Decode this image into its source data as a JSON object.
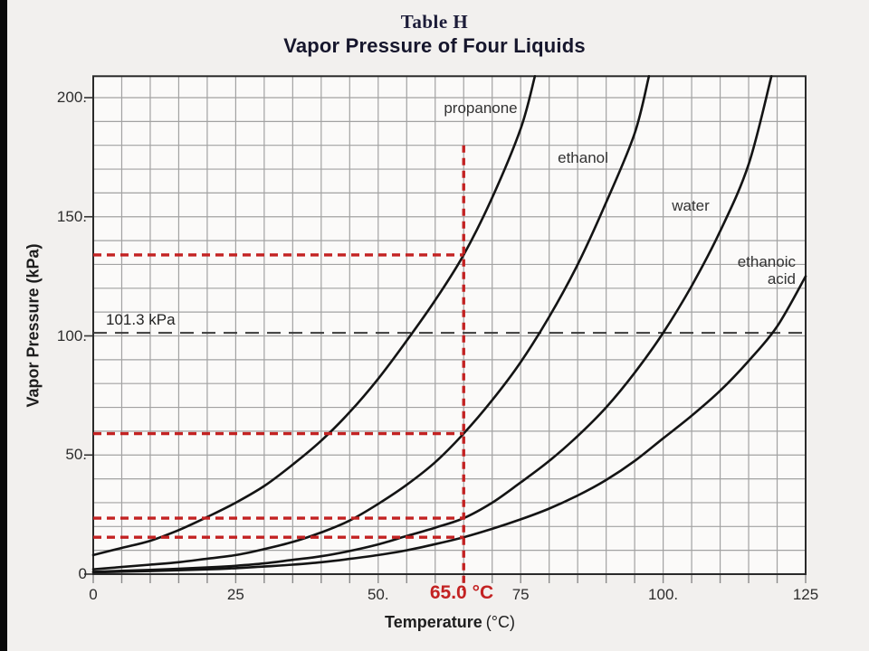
{
  "title": {
    "table": "Table H",
    "subtitle": "Vapor Pressure of Four Liquids"
  },
  "axes": {
    "x": {
      "label": "Temperature",
      "unit": "(°C)",
      "min": 0,
      "max": 125,
      "grid_step": 5,
      "ticks": [
        {
          "value": 0,
          "label": "0"
        },
        {
          "value": 25,
          "label": "25"
        },
        {
          "value": 50,
          "label": "50."
        },
        {
          "value": 75,
          "label": "75"
        },
        {
          "value": 100,
          "label": "100."
        },
        {
          "value": 125,
          "label": "125"
        }
      ]
    },
    "y": {
      "label": "Vapor Pressure (kPa)",
      "min": 0,
      "max": 209,
      "grid_step": 10,
      "ticks": [
        {
          "value": 0,
          "label": "0"
        },
        {
          "value": 50,
          "label": "50."
        },
        {
          "value": 100,
          "label": "100."
        },
        {
          "value": 150,
          "label": "150."
        },
        {
          "value": 200,
          "label": "200."
        }
      ]
    }
  },
  "reference_line": {
    "kpa": 101.3,
    "label": "101.3 kPa"
  },
  "annotation": {
    "temperature_label": "65.0 °C",
    "temperature": 65,
    "vertical_line_top_kpa": 180,
    "horizontal_lines_kpa": [
      134,
      59,
      23.5,
      15.5
    ],
    "readings_at_65C": [
      {
        "liquid": "propanone",
        "kpa": 134
      },
      {
        "liquid": "ethanol",
        "kpa": 59
      },
      {
        "liquid": "water",
        "kpa": 23.5
      },
      {
        "liquid": "ethanoic acid",
        "kpa": 15.5
      }
    ]
  },
  "colors": {
    "accent_red": "#c32222",
    "curve": "#141414",
    "grid": "#a2a2a2",
    "frame": "#2a2a2a",
    "reference_dash": "#3a3a3a"
  },
  "chart_data": {
    "type": "line",
    "title": "Vapor Pressure of Four Liquids",
    "xlabel": "Temperature (°C)",
    "ylabel": "Vapor Pressure (kPa)",
    "xlim": [
      0,
      125
    ],
    "ylim": [
      0,
      209
    ],
    "grid": "on",
    "x_grid_step": 5,
    "y_grid_step": 10,
    "reference_line": {
      "y": 101.3,
      "label": "101.3 kPa",
      "style": "dashed"
    },
    "annotation_lines": {
      "x": 65,
      "y_values": [
        134,
        59,
        23.5,
        15.5
      ],
      "color": "#c32222",
      "style": "dashed"
    },
    "series": [
      {
        "name": "propanone",
        "points": [
          [
            0,
            8
          ],
          [
            5,
            11
          ],
          [
            10,
            14
          ],
          [
            15,
            18.5
          ],
          [
            20,
            24
          ],
          [
            25,
            30
          ],
          [
            30,
            37
          ],
          [
            35,
            46
          ],
          [
            40,
            56
          ],
          [
            45,
            68
          ],
          [
            50,
            82
          ],
          [
            55,
            98
          ],
          [
            60,
            115
          ],
          [
            65,
            134
          ],
          [
            70,
            158
          ],
          [
            75,
            187
          ],
          [
            77.5,
            209
          ]
        ]
      },
      {
        "name": "ethanol",
        "points": [
          [
            0,
            2
          ],
          [
            5,
            3
          ],
          [
            10,
            4
          ],
          [
            15,
            5
          ],
          [
            20,
            6.5
          ],
          [
            25,
            8
          ],
          [
            30,
            10.5
          ],
          [
            35,
            13.5
          ],
          [
            40,
            17.5
          ],
          [
            45,
            22.5
          ],
          [
            50,
            29.5
          ],
          [
            55,
            37.5
          ],
          [
            60,
            47
          ],
          [
            65,
            59
          ],
          [
            70,
            73
          ],
          [
            75,
            89
          ],
          [
            80,
            108
          ],
          [
            85,
            130
          ],
          [
            90,
            156
          ],
          [
            95,
            185
          ],
          [
            97.5,
            209
          ]
        ]
      },
      {
        "name": "water",
        "points": [
          [
            0,
            1
          ],
          [
            10,
            1.8
          ],
          [
            20,
            2.8
          ],
          [
            25,
            3.5
          ],
          [
            30,
            4.5
          ],
          [
            35,
            6
          ],
          [
            40,
            7.5
          ],
          [
            45,
            9.7
          ],
          [
            50,
            12.5
          ],
          [
            55,
            16
          ],
          [
            60,
            19.5
          ],
          [
            65,
            23.5
          ],
          [
            70,
            30
          ],
          [
            75,
            38.5
          ],
          [
            80,
            47.5
          ],
          [
            85,
            58
          ],
          [
            90,
            70
          ],
          [
            95,
            84.5
          ],
          [
            100,
            101.3
          ],
          [
            105,
            121
          ],
          [
            110,
            144
          ],
          [
            115,
            172
          ],
          [
            119,
            209
          ]
        ]
      },
      {
        "name": "ethanoic acid",
        "points": [
          [
            0,
            0.8
          ],
          [
            10,
            1.3
          ],
          [
            20,
            2
          ],
          [
            25,
            2.5
          ],
          [
            30,
            3.2
          ],
          [
            35,
            4
          ],
          [
            40,
            5
          ],
          [
            45,
            6.4
          ],
          [
            50,
            8
          ],
          [
            55,
            10
          ],
          [
            60,
            12.6
          ],
          [
            65,
            15.5
          ],
          [
            70,
            19
          ],
          [
            75,
            23
          ],
          [
            80,
            27.5
          ],
          [
            85,
            33
          ],
          [
            90,
            39.5
          ],
          [
            95,
            47.5
          ],
          [
            100,
            57
          ],
          [
            105,
            66.5
          ],
          [
            110,
            77
          ],
          [
            115,
            89.5
          ],
          [
            120,
            104
          ],
          [
            125,
            125
          ]
        ]
      }
    ]
  }
}
